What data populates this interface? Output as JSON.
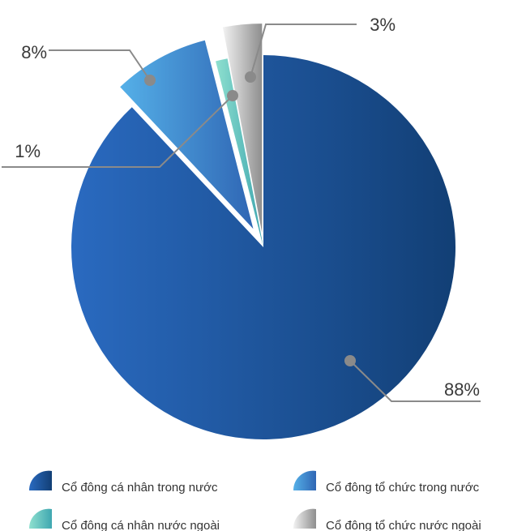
{
  "chart_data": {
    "type": "pie",
    "title": "",
    "slices": [
      {
        "label": "Cổ đông cá nhân trong nước",
        "value": 88,
        "value_label": "88%",
        "color_dark": "#123f75",
        "color_light": "#2a6ac0",
        "exploded": false
      },
      {
        "label": "Cổ đông tổ chức trong nước",
        "value": 8,
        "value_label": "8%",
        "color_dark": "#2f66b4",
        "color_light": "#55b0e8",
        "exploded": true
      },
      {
        "label": "Cổ đông cá nhân nước ngoài",
        "value": 1,
        "value_label": "1%",
        "color_dark": "#3fa7b0",
        "color_light": "#8fe0cf",
        "exploded": false
      },
      {
        "label": "Cổ đông tổ chức nước ngoài",
        "value": 3,
        "value_label": "3%",
        "color_dark": "#8e8e8e",
        "color_light": "#f2f2f2",
        "exploded": true
      }
    ],
    "legend_position": "bottom",
    "leader_color": "#8a8a8a"
  }
}
